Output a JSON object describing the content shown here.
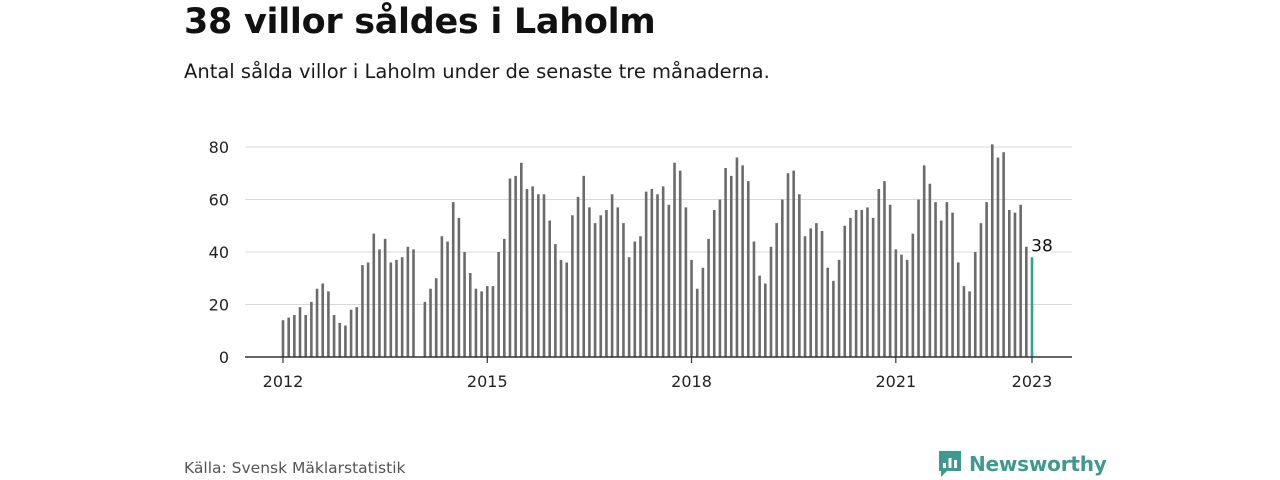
{
  "title": "38 villor såldes i Laholm",
  "subtitle": "Antal sålda villor i Laholm under de senaste tre månaderna.",
  "source": "Källa: Svensk Mäklarstatistik",
  "brand": {
    "name": "Newsworthy",
    "color": "#3e9a8f"
  },
  "colors": {
    "bar": "#6b6b6b",
    "highlight": "#2aa694",
    "grid": "#d9d9d9",
    "axis": "#333333"
  },
  "chart_data": {
    "type": "bar",
    "title": "",
    "xlabel": "",
    "ylabel": "",
    "ylim": [
      0,
      80
    ],
    "yticks": [
      0,
      20,
      40,
      60,
      80
    ],
    "xtick_labels": [
      "2012",
      "2015",
      "2018",
      "2021",
      "2023"
    ],
    "grid": true,
    "series": [
      {
        "values": [
          14,
          15,
          16,
          19,
          16,
          21,
          26,
          28,
          25,
          16,
          13,
          12,
          18,
          19,
          35,
          36,
          47,
          41,
          45,
          36,
          37,
          38,
          42,
          41,
          null,
          21,
          26,
          30,
          46,
          44,
          59,
          53,
          40,
          32,
          26,
          25,
          27,
          27,
          40,
          45,
          68,
          69,
          74,
          64,
          65,
          62,
          62,
          52,
          43,
          37,
          36,
          54,
          61,
          69,
          57,
          51,
          54,
          56,
          62,
          57,
          51,
          38,
          44,
          46,
          63,
          64,
          62,
          65,
          58,
          74,
          71,
          57,
          37,
          26,
          34,
          45,
          56,
          60,
          72,
          69,
          76,
          73,
          67,
          44,
          31,
          28,
          42,
          51,
          60,
          70,
          71,
          62,
          46,
          49,
          51,
          48,
          34,
          29,
          37,
          50,
          53,
          56,
          56,
          57,
          53,
          64,
          67,
          58,
          41,
          39,
          37,
          47,
          60,
          73,
          66,
          59,
          52,
          59,
          55,
          36,
          27,
          25,
          40,
          51,
          59,
          81,
          76,
          78,
          56,
          55,
          58,
          42,
          38
        ]
      }
    ],
    "highlight_label": "38"
  }
}
